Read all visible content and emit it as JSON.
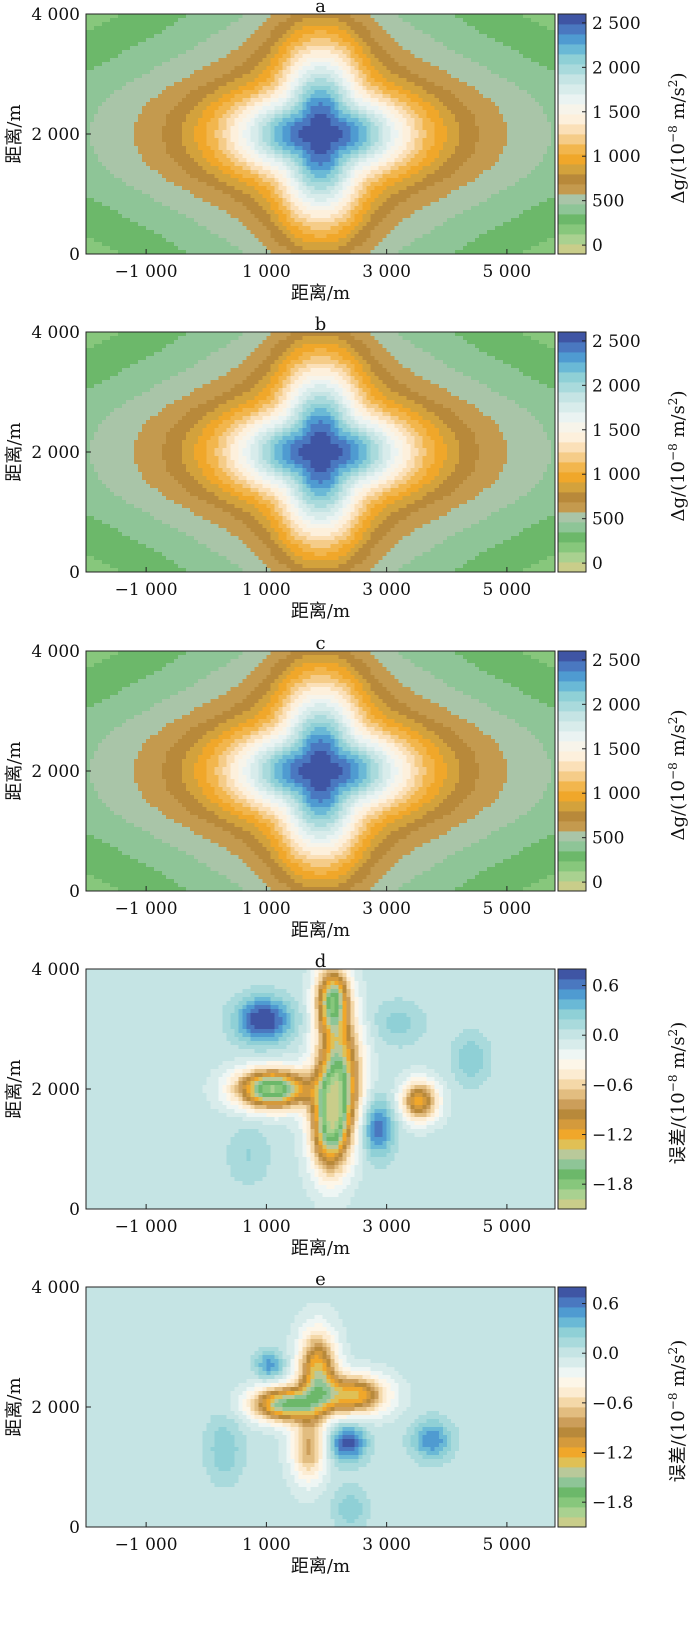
{
  "figure": {
    "colors_main": [
      "#c9cd8a",
      "#a9d190",
      "#87c77c",
      "#6cb86a",
      "#8ec597",
      "#a9c5a8",
      "#c49a4e",
      "#b8893a",
      "#d3a23c",
      "#f0a72a",
      "#f2b64d",
      "#f5cc88",
      "#fbe0b8",
      "#fdf0dc",
      "#f7f4ea",
      "#eaf3f2",
      "#d8eceb",
      "#c5e4e4",
      "#a9dadc",
      "#8fd0d6",
      "#6ab9d6",
      "#4f9bd1",
      "#4a78c0",
      "#3f55a4"
    ],
    "colors_error": [
      "#c9cd8a",
      "#a9d190",
      "#87c77c",
      "#6cb86a",
      "#8ec597",
      "#b9c99a",
      "#e0c055",
      "#f0a72a",
      "#d49a3c",
      "#b8893a",
      "#cc9e5a",
      "#e2bd80",
      "#f4d8a8",
      "#fcecd2",
      "#fdf6e8",
      "#eef6f4",
      "#d8eceb",
      "#c5e4e4",
      "#a9dadc",
      "#8fd0d6",
      "#6ab9d6",
      "#4f9bd1",
      "#4a78c0",
      "#3f55a4"
    ]
  },
  "chart_data": [
    {
      "type": "heatmap",
      "subplot_label": "a",
      "xlabel": "距离/m",
      "ylabel": "距离/m",
      "xticks": [
        "−1 000",
        "1 000",
        "3 000",
        "5 000"
      ],
      "xtick_values": [
        -1000,
        1000,
        3000,
        5000
      ],
      "yticks": [
        "0",
        "2 000",
        "4 000"
      ],
      "ytick_values": [
        0,
        2000,
        4000
      ],
      "xlim": [
        -2000,
        5800
      ],
      "ylim": [
        0,
        4000
      ],
      "colorbar": {
        "label_prefix": "Δg/(10",
        "label_exp": "−8",
        "label_suffix": " m/s",
        "label_exp2": "2",
        "label_close": ")",
        "ticks": [
          "2 500",
          "2 000",
          "1 500",
          "1 000",
          "500",
          "0"
        ],
        "tick_values": [
          2500,
          2000,
          1500,
          1000,
          500,
          0
        ],
        "range": [
          -100,
          2600
        ]
      },
      "peak": 2600,
      "center": [
        1900,
        2000
      ]
    },
    {
      "type": "heatmap",
      "subplot_label": "b",
      "xlabel": "距离/m",
      "ylabel": "距离/m",
      "xticks": [
        "−1 000",
        "1 000",
        "3 000",
        "5 000"
      ],
      "xtick_values": [
        -1000,
        1000,
        3000,
        5000
      ],
      "yticks": [
        "0",
        "2 000",
        "4 000"
      ],
      "ytick_values": [
        0,
        2000,
        4000
      ],
      "xlim": [
        -2000,
        5800
      ],
      "ylim": [
        0,
        4000
      ],
      "colorbar": {
        "label_prefix": "Δg/(10",
        "label_exp": "−8",
        "label_suffix": " m/s",
        "label_exp2": "2",
        "label_close": ")",
        "ticks": [
          "2 500",
          "2 000",
          "1 500",
          "1 000",
          "500",
          "0"
        ],
        "tick_values": [
          2500,
          2000,
          1500,
          1000,
          500,
          0
        ],
        "range": [
          -100,
          2600
        ]
      },
      "peak": 2600,
      "center": [
        1900,
        2000
      ]
    },
    {
      "type": "heatmap",
      "subplot_label": "c",
      "xlabel": "距离/m",
      "ylabel": "距离/m",
      "xticks": [
        "−1 000",
        "1 000",
        "3 000",
        "5 000"
      ],
      "xtick_values": [
        -1000,
        1000,
        3000,
        5000
      ],
      "yticks": [
        "0",
        "2 000",
        "4 000"
      ],
      "ytick_values": [
        0,
        2000,
        4000
      ],
      "xlim": [
        -2000,
        5800
      ],
      "ylim": [
        0,
        4000
      ],
      "colorbar": {
        "label_prefix": "Δg/(10",
        "label_exp": "−8",
        "label_suffix": " m/s",
        "label_exp2": "2",
        "label_close": ")",
        "ticks": [
          "2 500",
          "2 000",
          "1 500",
          "1 000",
          "500",
          "0"
        ],
        "tick_values": [
          2500,
          2000,
          1500,
          1000,
          500,
          0
        ],
        "range": [
          -100,
          2600
        ]
      },
      "peak": 2600,
      "center": [
        1900,
        2000
      ]
    },
    {
      "type": "heatmap",
      "subplot_label": "d",
      "xlabel": "距离/m",
      "ylabel": "距离/m",
      "xticks": [
        "−1 000",
        "1 000",
        "3 000",
        "5 000"
      ],
      "xtick_values": [
        -1000,
        1000,
        3000,
        5000
      ],
      "yticks": [
        "0",
        "2 000",
        "4 000"
      ],
      "ytick_values": [
        0,
        2000,
        4000
      ],
      "xlim": [
        -2000,
        5800
      ],
      "ylim": [
        0,
        4000
      ],
      "colorbar": {
        "label_prefix": "误差/(10",
        "label_exp": "−8",
        "label_suffix": " m/s",
        "label_exp2": "2",
        "label_close": ")",
        "ticks": [
          "0.6",
          "0.0",
          "−0.6",
          "−1.2",
          "−1.8"
        ],
        "tick_values": [
          0.6,
          0.0,
          -0.6,
          -1.2,
          -1.8
        ],
        "range": [
          -2.1,
          0.8
        ]
      },
      "blobs": [
        {
          "x": 1100,
          "y": 2000,
          "sx": 420,
          "sy": 230,
          "a": -1.9
        },
        {
          "x": 2200,
          "y": 2200,
          "sx": 260,
          "sy": 700,
          "a": -1.6
        },
        {
          "x": 2050,
          "y": 1300,
          "sx": 220,
          "sy": 520,
          "a": -1.3
        },
        {
          "x": 2100,
          "y": 3500,
          "sx": 190,
          "sy": 380,
          "a": -1.5
        },
        {
          "x": 3550,
          "y": 1800,
          "sx": 210,
          "sy": 230,
          "a": -1.2
        },
        {
          "x": 950,
          "y": 3150,
          "sx": 320,
          "sy": 260,
          "a": 0.85
        },
        {
          "x": 2850,
          "y": 1350,
          "sx": 190,
          "sy": 330,
          "a": 0.65
        },
        {
          "x": 4400,
          "y": 2500,
          "sx": 220,
          "sy": 300,
          "a": 0.3
        },
        {
          "x": 3200,
          "y": 3100,
          "sx": 300,
          "sy": 260,
          "a": 0.25
        },
        {
          "x": 700,
          "y": 900,
          "sx": 260,
          "sy": 350,
          "a": 0.2
        }
      ]
    },
    {
      "type": "heatmap",
      "subplot_label": "e",
      "xlabel": "距离/m",
      "ylabel": "距离/m",
      "xticks": [
        "−1 000",
        "1 000",
        "3 000",
        "5 000"
      ],
      "xtick_values": [
        -1000,
        1000,
        3000,
        5000
      ],
      "yticks": [
        "0",
        "2 000",
        "4 000"
      ],
      "ytick_values": [
        0,
        2000,
        4000
      ],
      "xlim": [
        -2000,
        5800
      ],
      "ylim": [
        0,
        4000
      ],
      "colorbar": {
        "label_prefix": "误差/(10",
        "label_exp": "−8",
        "label_suffix": " m/s",
        "label_exp2": "2",
        "label_close": ")",
        "ticks": [
          "0.6",
          "0.0",
          "−0.6",
          "−1.2",
          "−1.8"
        ],
        "tick_values": [
          0.6,
          0.0,
          -0.6,
          -1.2,
          -1.8
        ],
        "range": [
          -2.1,
          0.8
        ]
      },
      "blobs": [
        {
          "x": 1300,
          "y": 2050,
          "sx": 380,
          "sy": 200,
          "a": -1.6
        },
        {
          "x": 1850,
          "y": 2600,
          "sx": 220,
          "sy": 450,
          "a": -1.3
        },
        {
          "x": 2450,
          "y": 2200,
          "sx": 380,
          "sy": 230,
          "a": -1.3
        },
        {
          "x": 1700,
          "y": 1300,
          "sx": 200,
          "sy": 380,
          "a": -0.8
        },
        {
          "x": 2350,
          "y": 1400,
          "sx": 220,
          "sy": 220,
          "a": 0.75
        },
        {
          "x": 3750,
          "y": 1450,
          "sx": 230,
          "sy": 230,
          "a": 0.55
        },
        {
          "x": 1050,
          "y": 2700,
          "sx": 170,
          "sy": 170,
          "a": 0.5
        },
        {
          "x": 300,
          "y": 1300,
          "sx": 220,
          "sy": 400,
          "a": 0.3
        },
        {
          "x": 2400,
          "y": 300,
          "sx": 200,
          "sy": 250,
          "a": 0.3
        }
      ]
    }
  ]
}
